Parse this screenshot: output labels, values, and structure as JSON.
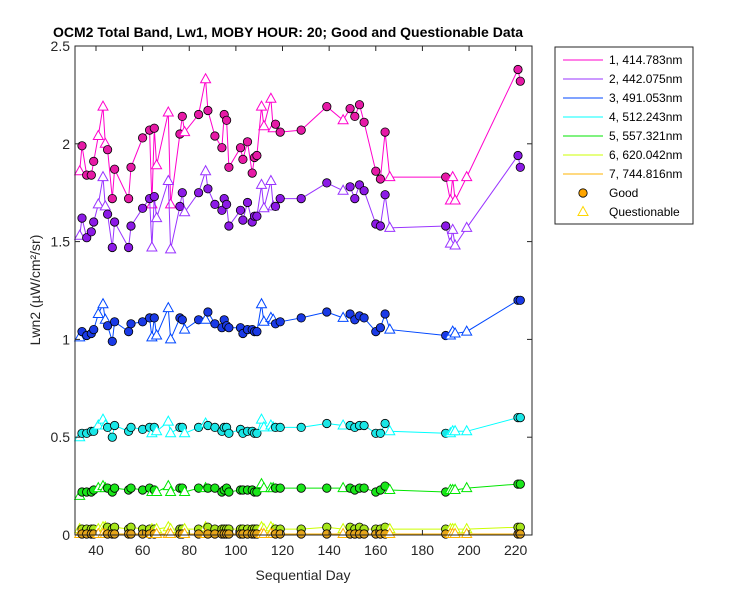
{
  "chart_data": {
    "type": "line",
    "title": "OCM2 Total Band, Lw1, MOBY HOUR: 20;  Good and Questionable Data",
    "xlabel": "Sequential Day",
    "ylabel": "Lwn2 (µW/cm²/sr)",
    "xlim": [
      31,
      227
    ],
    "ylim": [
      0,
      2.5
    ],
    "xticks": [
      40,
      60,
      80,
      100,
      120,
      140,
      160,
      180,
      200,
      220
    ],
    "xtick_labels": [
      "40",
      "60",
      "80",
      "100",
      "120",
      "140",
      "160",
      "180",
      "200",
      "220"
    ],
    "yticks": [
      0,
      0.5,
      1,
      1.5,
      2,
      2.5
    ],
    "ytick_labels": [
      "0",
      "0.5",
      "1",
      "1.5",
      "2",
      "2.5"
    ],
    "grid": false,
    "legend_position": "outside-top-right",
    "x": [
      33,
      34,
      36,
      38,
      39,
      41,
      43,
      44,
      45,
      47,
      48,
      54,
      55,
      60,
      63,
      64,
      65,
      66,
      71,
      72,
      76,
      77,
      78,
      84,
      87,
      88,
      91,
      94,
      95,
      96,
      97,
      102,
      103,
      105,
      107,
      108,
      109,
      111,
      112,
      115,
      116,
      117,
      119,
      128,
      139,
      146,
      149,
      151,
      153,
      155,
      160,
      162,
      164,
      166,
      190,
      192,
      193,
      194,
      199,
      221,
      222
    ],
    "series": [
      {
        "name": "1, 414.783nm",
        "color": "#ff00cc",
        "marker_fill": "#e61aa6",
        "values": [
          1.86,
          1.99,
          1.84,
          1.84,
          1.91,
          2.04,
          2.19,
          2.0,
          1.97,
          1.72,
          1.87,
          1.72,
          1.88,
          2.03,
          2.07,
          1.69,
          2.08,
          1.89,
          2.16,
          1.69,
          2.05,
          2.14,
          2.06,
          2.15,
          2.33,
          2.17,
          2.04,
          1.98,
          2.15,
          2.12,
          1.88,
          1.98,
          1.92,
          2.01,
          1.85,
          1.93,
          1.94,
          2.19,
          2.09,
          2.23,
          2.08,
          2.1,
          2.06,
          2.07,
          2.19,
          2.12,
          2.18,
          2.14,
          2.2,
          2.11,
          1.86,
          1.82,
          2.06,
          1.83,
          1.83,
          1.71,
          1.83,
          1.71,
          1.83,
          2.38,
          2.32
        ]
      },
      {
        "name": "2, 442.075nm",
        "color": "#9933ff",
        "marker_fill": "#8c1ae6",
        "values": [
          1.53,
          1.62,
          1.52,
          1.55,
          1.6,
          1.69,
          1.83,
          1.68,
          1.64,
          1.47,
          1.6,
          1.47,
          1.58,
          1.67,
          1.72,
          1.47,
          1.73,
          1.62,
          1.81,
          1.46,
          1.68,
          1.75,
          1.65,
          1.75,
          1.86,
          1.77,
          1.69,
          1.66,
          1.72,
          1.69,
          1.58,
          1.66,
          1.61,
          1.7,
          1.6,
          1.63,
          1.63,
          1.79,
          1.67,
          1.81,
          1.68,
          1.68,
          1.72,
          1.72,
          1.8,
          1.76,
          1.78,
          1.72,
          1.79,
          1.76,
          1.59,
          1.58,
          1.74,
          1.57,
          1.58,
          1.49,
          1.56,
          1.48,
          1.57,
          1.94,
          1.88
        ]
      },
      {
        "name": "3, 491.053nm",
        "color": "#0047ff",
        "marker_fill": "#1a3ae6",
        "values": [
          1.01,
          1.04,
          1.02,
          1.03,
          1.05,
          1.13,
          1.18,
          1.1,
          1.07,
          0.99,
          1.09,
          1.04,
          1.08,
          1.09,
          1.11,
          1.01,
          1.11,
          1.02,
          1.16,
          1.0,
          1.11,
          1.1,
          1.05,
          1.1,
          1.1,
          1.14,
          1.08,
          1.06,
          1.1,
          1.07,
          1.06,
          1.06,
          1.03,
          1.05,
          1.05,
          1.04,
          1.04,
          1.18,
          1.09,
          1.11,
          1.1,
          1.08,
          1.09,
          1.11,
          1.14,
          1.11,
          1.13,
          1.1,
          1.12,
          1.11,
          1.04,
          1.06,
          1.13,
          1.05,
          1.02,
          1.02,
          1.04,
          1.03,
          1.04,
          1.2,
          1.2
        ]
      },
      {
        "name": "4, 512.243nm",
        "color": "#00ffff",
        "marker_fill": "#1ae6e6",
        "values": [
          0.5,
          0.52,
          0.52,
          0.53,
          0.53,
          0.56,
          0.59,
          0.56,
          0.55,
          0.5,
          0.56,
          0.53,
          0.55,
          0.54,
          0.55,
          0.52,
          0.55,
          0.53,
          0.58,
          0.52,
          0.55,
          0.55,
          0.52,
          0.55,
          0.57,
          0.56,
          0.55,
          0.53,
          0.55,
          0.55,
          0.52,
          0.54,
          0.52,
          0.53,
          0.53,
          0.52,
          0.52,
          0.59,
          0.55,
          0.56,
          0.55,
          0.55,
          0.55,
          0.55,
          0.57,
          0.56,
          0.56,
          0.55,
          0.56,
          0.56,
          0.52,
          0.52,
          0.57,
          0.53,
          0.52,
          0.52,
          0.53,
          0.53,
          0.53,
          0.6,
          0.6
        ]
      },
      {
        "name": "5, 557.321nm",
        "color": "#00e600",
        "marker_fill": "#1ae61a",
        "values": [
          0.2,
          0.22,
          0.22,
          0.22,
          0.23,
          0.24,
          0.25,
          0.24,
          0.24,
          0.22,
          0.24,
          0.23,
          0.24,
          0.23,
          0.24,
          0.22,
          0.23,
          0.22,
          0.25,
          0.22,
          0.24,
          0.24,
          0.22,
          0.24,
          0.24,
          0.24,
          0.24,
          0.22,
          0.23,
          0.24,
          0.22,
          0.23,
          0.23,
          0.23,
          0.23,
          0.22,
          0.22,
          0.26,
          0.24,
          0.24,
          0.24,
          0.24,
          0.24,
          0.24,
          0.24,
          0.24,
          0.24,
          0.23,
          0.24,
          0.24,
          0.22,
          0.23,
          0.25,
          0.23,
          0.22,
          0.23,
          0.23,
          0.23,
          0.24,
          0.26,
          0.26
        ]
      },
      {
        "name": "6, 620.042nm",
        "color": "#ccff00",
        "marker_fill": "#a6e61a",
        "values": [
          0.03,
          0.03,
          0.03,
          0.03,
          0.03,
          0.03,
          0.04,
          0.04,
          0.04,
          0.03,
          0.04,
          0.03,
          0.04,
          0.03,
          0.03,
          0.03,
          0.03,
          0.03,
          0.04,
          0.03,
          0.03,
          0.03,
          0.03,
          0.03,
          0.04,
          0.04,
          0.03,
          0.03,
          0.03,
          0.03,
          0.03,
          0.03,
          0.03,
          0.03,
          0.03,
          0.03,
          0.03,
          0.04,
          0.03,
          0.04,
          0.03,
          0.03,
          0.03,
          0.03,
          0.04,
          0.03,
          0.04,
          0.03,
          0.04,
          0.03,
          0.03,
          0.03,
          0.04,
          0.03,
          0.03,
          0.03,
          0.03,
          0.03,
          0.03,
          0.04,
          0.04
        ]
      },
      {
        "name": "7, 744.816nm",
        "color": "#ffb300",
        "marker_fill": "#e6a61a",
        "values": [
          0.005,
          0.005,
          0.005,
          0.005,
          0.005,
          0.005,
          0.005,
          0.005,
          0.005,
          0.005,
          0.005,
          0.005,
          0.005,
          0.005,
          0.005,
          0.005,
          0.005,
          0.005,
          0.005,
          0.005,
          0.005,
          0.005,
          0.005,
          0.005,
          0.005,
          0.005,
          0.005,
          0.005,
          0.005,
          0.005,
          0.005,
          0.005,
          0.005,
          0.005,
          0.005,
          0.005,
          0.005,
          0.005,
          0.005,
          0.005,
          0.005,
          0.005,
          0.005,
          0.005,
          0.005,
          0.005,
          0.005,
          0.005,
          0.005,
          0.005,
          0.005,
          0.005,
          0.005,
          0.005,
          0.005,
          0.005,
          0.005,
          0.005,
          0.005,
          0.005,
          0.005
        ]
      }
    ],
    "quality": [
      "Q",
      "G",
      "G",
      "G",
      "G",
      "Q",
      "Q",
      "Q",
      "G",
      "G",
      "G",
      "G",
      "G",
      "G",
      "G",
      "Q",
      "G",
      "Q",
      "Q",
      "Q",
      "G",
      "G",
      "Q",
      "G",
      "Q",
      "G",
      "G",
      "G",
      "G",
      "G",
      "G",
      "G",
      "G",
      "G",
      "G",
      "G",
      "G",
      "Q",
      "Q",
      "Q",
      "Q",
      "G",
      "G",
      "G",
      "G",
      "Q",
      "G",
      "G",
      "G",
      "G",
      "G",
      "G",
      "G",
      "Q",
      "G",
      "Q",
      "Q",
      "Q",
      "Q",
      "G",
      "G"
    ],
    "legend_entries": [
      {
        "label": "1, 414.783nm",
        "kind": "line",
        "color": "#ff00cc"
      },
      {
        "label": "2, 442.075nm",
        "kind": "line",
        "color": "#9933ff"
      },
      {
        "label": "3, 491.053nm",
        "kind": "line",
        "color": "#0047ff"
      },
      {
        "label": "4, 512.243nm",
        "kind": "line",
        "color": "#00ffff"
      },
      {
        "label": "5, 557.321nm",
        "kind": "line",
        "color": "#00e600"
      },
      {
        "label": "6, 620.042nm",
        "kind": "line",
        "color": "#ccff00"
      },
      {
        "label": "7, 744.816nm",
        "kind": "line",
        "color": "#ffb300"
      },
      {
        "label": "Good",
        "kind": "circle",
        "color": "#ffa500"
      },
      {
        "label": "Questionable",
        "kind": "triangle",
        "color": "#ffd700"
      }
    ]
  }
}
